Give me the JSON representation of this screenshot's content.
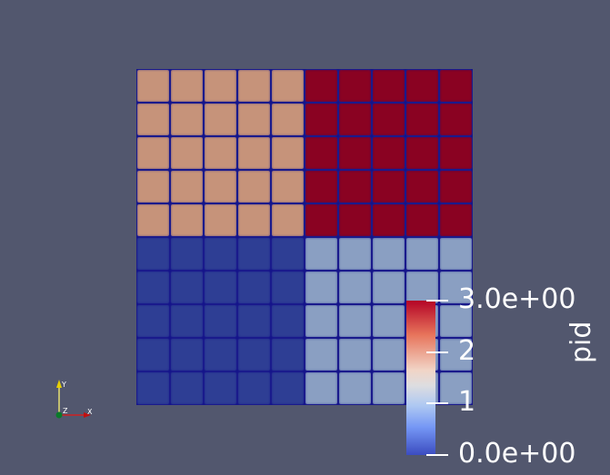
{
  "render": {
    "background": "#52576e",
    "grid_rows": 10,
    "grid_cols": 10,
    "edge_color": "#14148a",
    "quadrants": {
      "top_left": {
        "pid": 2,
        "color": "#c6937a"
      },
      "top_right": {
        "pid": 3,
        "color": "#8a0222"
      },
      "bottom_left": {
        "pid": 0,
        "color": "#2e3e94"
      },
      "bottom_right": {
        "pid": 1,
        "color": "#8a9fc2"
      }
    }
  },
  "colorbar": {
    "title": "pid",
    "range": [
      0,
      3
    ],
    "colormap": "Cool to Warm",
    "labels": [
      {
        "value": 3,
        "text": "3.0e+00"
      },
      {
        "value": 2,
        "text": "2"
      },
      {
        "value": 1,
        "text": "1"
      },
      {
        "value": 0,
        "text": "0.0e+00"
      }
    ]
  },
  "axes": {
    "x": "X",
    "y": "Y",
    "z": "Z"
  }
}
